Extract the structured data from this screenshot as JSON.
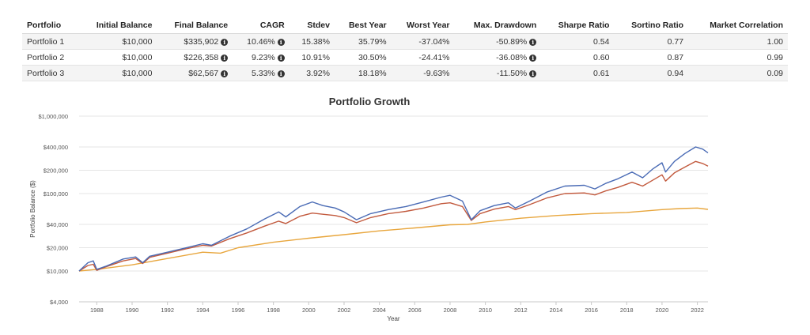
{
  "table": {
    "headers": [
      "Portfolio",
      "Initial Balance",
      "Final Balance",
      "CAGR",
      "Stdev",
      "Best Year",
      "Worst Year",
      "Max. Drawdown",
      "Sharpe Ratio",
      "Sortino Ratio",
      "Market Correlation"
    ],
    "info_icon": "info-circle-icon",
    "rows": [
      {
        "name": "Portfolio 1",
        "initial": "$10,000",
        "final": "$335,902",
        "cagr": "10.46%",
        "stdev": "15.38%",
        "best": "35.79%",
        "worst": "-37.04%",
        "drawdown": "-50.89%",
        "sharpe": "0.54",
        "sortino": "0.77",
        "corr": "1.00"
      },
      {
        "name": "Portfolio 2",
        "initial": "$10,000",
        "final": "$226,358",
        "cagr": "9.23%",
        "stdev": "10.91%",
        "best": "30.50%",
        "worst": "-24.41%",
        "drawdown": "-36.08%",
        "sharpe": "0.60",
        "sortino": "0.87",
        "corr": "0.99"
      },
      {
        "name": "Portfolio 3",
        "initial": "$10,000",
        "final": "$62,567",
        "cagr": "5.33%",
        "stdev": "3.92%",
        "best": "18.18%",
        "worst": "-9.63%",
        "drawdown": "-11.50%",
        "sharpe": "0.61",
        "sortino": "0.94",
        "corr": "0.09"
      }
    ]
  },
  "chart_data": {
    "type": "line",
    "title": "Portfolio Growth",
    "xlabel": "Year",
    "ylabel": "Portfolio Balance ($)",
    "y_scale": "log",
    "ylim": [
      4000,
      1000000
    ],
    "xlim": [
      1987.0,
      2022.6
    ],
    "yticks": [
      1000000,
      400000,
      200000,
      100000,
      40000,
      20000,
      10000,
      4000
    ],
    "ytick_labels": [
      "$1,000,000",
      "$400,000",
      "$200,000",
      "$100,000",
      "$40,000",
      "$20,000",
      "$10,000",
      "$4,000"
    ],
    "xticks": [
      1988,
      1990,
      1992,
      1994,
      1996,
      1998,
      2000,
      2002,
      2004,
      2006,
      2008,
      2010,
      2012,
      2014,
      2016,
      2018,
      2020,
      2022
    ],
    "xtick_labels": [
      "1988",
      "1990",
      "1992",
      "1994",
      "1996",
      "1998",
      "2000",
      "2002",
      "2004",
      "2006",
      "2008",
      "2010",
      "2012",
      "2014",
      "2016",
      "2018",
      "2020",
      "2022"
    ],
    "grid": true,
    "legend": "none",
    "series": [
      {
        "color": "#4a6bb5",
        "x": [
          1987.0,
          1987.5,
          1987.8,
          1988.0,
          1988.5,
          1989.5,
          1990.2,
          1990.6,
          1991.0,
          1992.0,
          1993.0,
          1994.0,
          1994.5,
          1995.5,
          1996.5,
          1997.5,
          1998.3,
          1998.7,
          1999.5,
          2000.2,
          2000.8,
          2001.5,
          2002.0,
          2002.7,
          2003.5,
          2004.5,
          2005.5,
          2006.5,
          2007.5,
          2008.0,
          2008.7,
          2009.2,
          2009.7,
          2010.5,
          2011.3,
          2011.7,
          2012.5,
          2013.5,
          2014.5,
          2015.6,
          2016.2,
          2016.8,
          2017.5,
          2018.3,
          2018.9,
          2019.5,
          2020.0,
          2020.2,
          2020.7,
          2021.3,
          2021.9,
          2022.3,
          2022.6
        ],
        "y": [
          10000,
          12800,
          13500,
          10500,
          11500,
          14300,
          15200,
          12800,
          15500,
          17500,
          19800,
          22500,
          21500,
          28000,
          35000,
          47000,
          58000,
          50000,
          68000,
          78000,
          70000,
          65000,
          58000,
          46000,
          55000,
          62000,
          68000,
          78000,
          90000,
          95000,
          80000,
          46000,
          60000,
          70000,
          76000,
          65000,
          80000,
          105000,
          125000,
          128000,
          115000,
          135000,
          155000,
          190000,
          160000,
          210000,
          250000,
          190000,
          260000,
          330000,
          400000,
          375000,
          335902
        ]
      },
      {
        "color": "#c25a3e",
        "x": [
          1987.0,
          1987.5,
          1987.8,
          1988.0,
          1988.5,
          1989.5,
          1990.2,
          1990.6,
          1991.0,
          1992.0,
          1993.0,
          1994.0,
          1994.5,
          1995.5,
          1996.5,
          1997.5,
          1998.3,
          1998.7,
          1999.5,
          2000.2,
          2000.8,
          2001.5,
          2002.0,
          2002.7,
          2003.5,
          2004.5,
          2005.5,
          2006.5,
          2007.5,
          2008.0,
          2008.7,
          2009.2,
          2009.7,
          2010.5,
          2011.3,
          2011.7,
          2012.5,
          2013.5,
          2014.5,
          2015.6,
          2016.2,
          2016.8,
          2017.5,
          2018.3,
          2018.9,
          2019.5,
          2020.0,
          2020.2,
          2020.7,
          2021.3,
          2021.9,
          2022.3,
          2022.6
        ],
        "y": [
          10000,
          11800,
          12200,
          10200,
          11300,
          13500,
          14500,
          12500,
          15000,
          17000,
          19200,
          21500,
          21000,
          26000,
          31000,
          38000,
          44000,
          41000,
          51000,
          56000,
          54000,
          52000,
          49000,
          42000,
          49000,
          55000,
          59000,
          65000,
          74000,
          76000,
          68000,
          45000,
          55000,
          63000,
          68000,
          62000,
          72000,
          88000,
          100000,
          102000,
          96000,
          108000,
          120000,
          140000,
          125000,
          150000,
          175000,
          145000,
          185000,
          220000,
          260000,
          245000,
          226358
        ]
      },
      {
        "color": "#e8a63d",
        "x": [
          1987.0,
          1988.0,
          1990.0,
          1992.0,
          1994.0,
          1995.0,
          1996.0,
          1998.0,
          2000.0,
          2002.0,
          2004.0,
          2006.0,
          2008.0,
          2009.0,
          2010.0,
          2012.0,
          2014.0,
          2016.0,
          2018.0,
          2020.0,
          2021.0,
          2022.0,
          2022.6
        ],
        "y": [
          10000,
          10500,
          12000,
          14500,
          17500,
          17000,
          20000,
          23500,
          26500,
          29500,
          33000,
          36000,
          39500,
          40000,
          43000,
          48000,
          52000,
          55000,
          57000,
          62000,
          64000,
          65000,
          62567
        ]
      }
    ]
  }
}
